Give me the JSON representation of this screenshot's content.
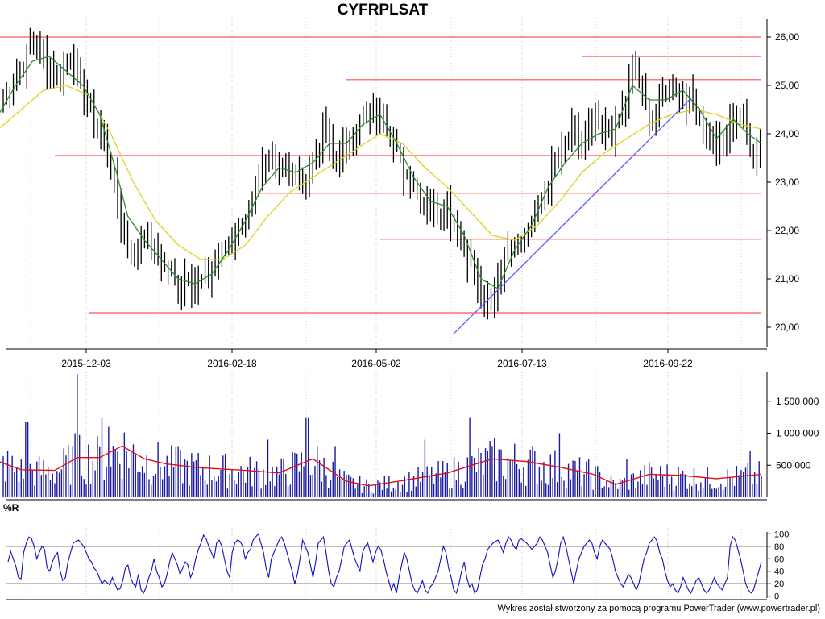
{
  "chart_data": [
    {
      "type": "candlestick",
      "panel": "price",
      "title": "CYFRPLSAT",
      "ylim": [
        19.6,
        26.3
      ],
      "y_ticks": [
        "26,00",
        "25,00",
        "24,00",
        "23,00",
        "22,00",
        "21,00",
        "20,00"
      ],
      "y_tick_values": [
        26,
        25,
        24,
        23,
        22,
        21,
        20
      ],
      "x_ticks": [
        "2015-12-03",
        "2016-02-18",
        "2016-05-02",
        "2016-07-13",
        "2016-09-22"
      ],
      "grid": true,
      "series": [
        {
          "name": "",
          "style": "ohlc-bars",
          "color": "#000000"
        },
        {
          "name": "",
          "style": "line",
          "color": "#2e8b2e"
        },
        {
          "name": "",
          "style": "line",
          "color": "#e0d020"
        }
      ],
      "close_path": [
        {
          "x": 0,
          "y": 24.5
        },
        {
          "x": 10,
          "y": 25.0
        },
        {
          "x": 20,
          "y": 25.3
        },
        {
          "x": 30,
          "y": 25.9
        },
        {
          "x": 40,
          "y": 25.6
        },
        {
          "x": 50,
          "y": 25.2
        },
        {
          "x": 58,
          "y": 25.4
        },
        {
          "x": 65,
          "y": 25.6
        },
        {
          "x": 75,
          "y": 24.9
        },
        {
          "x": 85,
          "y": 24.3
        },
        {
          "x": 95,
          "y": 23.8
        },
        {
          "x": 105,
          "y": 22.8
        },
        {
          "x": 112,
          "y": 21.8
        },
        {
          "x": 120,
          "y": 21.5
        },
        {
          "x": 130,
          "y": 21.9
        },
        {
          "x": 140,
          "y": 21.5
        },
        {
          "x": 150,
          "y": 21.2
        },
        {
          "x": 160,
          "y": 20.8
        },
        {
          "x": 168,
          "y": 21.1
        },
        {
          "x": 175,
          "y": 20.9
        },
        {
          "x": 185,
          "y": 21.0
        },
        {
          "x": 195,
          "y": 21.4
        },
        {
          "x": 205,
          "y": 21.8
        },
        {
          "x": 215,
          "y": 22.1
        },
        {
          "x": 225,
          "y": 22.5
        },
        {
          "x": 235,
          "y": 23.2
        },
        {
          "x": 245,
          "y": 23.5
        },
        {
          "x": 255,
          "y": 23.4
        },
        {
          "x": 265,
          "y": 23.1
        },
        {
          "x": 272,
          "y": 22.9
        },
        {
          "x": 280,
          "y": 23.5
        },
        {
          "x": 290,
          "y": 24.1
        },
        {
          "x": 298,
          "y": 23.4
        },
        {
          "x": 306,
          "y": 23.6
        },
        {
          "x": 315,
          "y": 24.0
        },
        {
          "x": 325,
          "y": 24.3
        },
        {
          "x": 335,
          "y": 24.5
        },
        {
          "x": 343,
          "y": 24.4
        },
        {
          "x": 350,
          "y": 23.9
        },
        {
          "x": 360,
          "y": 23.3
        },
        {
          "x": 370,
          "y": 23.0
        },
        {
          "x": 380,
          "y": 22.6
        },
        {
          "x": 390,
          "y": 22.3
        },
        {
          "x": 398,
          "y": 22.6
        },
        {
          "x": 405,
          "y": 22.2
        },
        {
          "x": 412,
          "y": 21.8
        },
        {
          "x": 420,
          "y": 21.4
        },
        {
          "x": 430,
          "y": 20.6
        },
        {
          "x": 438,
          "y": 20.4
        },
        {
          "x": 446,
          "y": 21.1
        },
        {
          "x": 455,
          "y": 21.7
        },
        {
          "x": 463,
          "y": 21.8
        },
        {
          "x": 470,
          "y": 21.9
        },
        {
          "x": 478,
          "y": 22.3
        },
        {
          "x": 486,
          "y": 22.8
        },
        {
          "x": 494,
          "y": 23.3
        },
        {
          "x": 502,
          "y": 23.5
        },
        {
          "x": 510,
          "y": 24.1
        },
        {
          "x": 520,
          "y": 23.8
        },
        {
          "x": 530,
          "y": 24.2
        },
        {
          "x": 540,
          "y": 24.0
        },
        {
          "x": 550,
          "y": 24.1
        },
        {
          "x": 558,
          "y": 24.6
        },
        {
          "x": 565,
          "y": 25.3
        },
        {
          "x": 570,
          "y": 25.2
        },
        {
          "x": 578,
          "y": 24.4
        },
        {
          "x": 586,
          "y": 24.4
        },
        {
          "x": 594,
          "y": 24.9
        },
        {
          "x": 602,
          "y": 25.0
        },
        {
          "x": 610,
          "y": 24.8
        },
        {
          "x": 618,
          "y": 24.6
        },
        {
          "x": 626,
          "y": 24.3
        },
        {
          "x": 634,
          "y": 23.9
        },
        {
          "x": 642,
          "y": 23.7
        },
        {
          "x": 650,
          "y": 24.1
        },
        {
          "x": 658,
          "y": 24.5
        },
        {
          "x": 666,
          "y": 24.1
        },
        {
          "x": 674,
          "y": 23.5
        },
        {
          "x": 680,
          "y": 23.9
        }
      ],
      "sma_fast_path": [
        {
          "x": 0,
          "y": 24.4
        },
        {
          "x": 15,
          "y": 25.0
        },
        {
          "x": 30,
          "y": 25.5
        },
        {
          "x": 45,
          "y": 25.6
        },
        {
          "x": 60,
          "y": 25.3
        },
        {
          "x": 75,
          "y": 25.0
        },
        {
          "x": 90,
          "y": 24.4
        },
        {
          "x": 105,
          "y": 23.2
        },
        {
          "x": 115,
          "y": 22.3
        },
        {
          "x": 130,
          "y": 21.8
        },
        {
          "x": 145,
          "y": 21.4
        },
        {
          "x": 160,
          "y": 21.0
        },
        {
          "x": 175,
          "y": 20.9
        },
        {
          "x": 190,
          "y": 21.1
        },
        {
          "x": 205,
          "y": 21.6
        },
        {
          "x": 220,
          "y": 22.2
        },
        {
          "x": 235,
          "y": 22.9
        },
        {
          "x": 250,
          "y": 23.3
        },
        {
          "x": 265,
          "y": 23.2
        },
        {
          "x": 280,
          "y": 23.4
        },
        {
          "x": 295,
          "y": 23.8
        },
        {
          "x": 310,
          "y": 23.8
        },
        {
          "x": 325,
          "y": 24.2
        },
        {
          "x": 340,
          "y": 24.4
        },
        {
          "x": 355,
          "y": 23.8
        },
        {
          "x": 370,
          "y": 23.1
        },
        {
          "x": 385,
          "y": 22.6
        },
        {
          "x": 400,
          "y": 22.5
        },
        {
          "x": 415,
          "y": 21.9
        },
        {
          "x": 430,
          "y": 21.0
        },
        {
          "x": 445,
          "y": 20.8
        },
        {
          "x": 460,
          "y": 21.6
        },
        {
          "x": 475,
          "y": 22.1
        },
        {
          "x": 490,
          "y": 22.9
        },
        {
          "x": 505,
          "y": 23.4
        },
        {
          "x": 520,
          "y": 23.8
        },
        {
          "x": 535,
          "y": 24.0
        },
        {
          "x": 550,
          "y": 24.1
        },
        {
          "x": 565,
          "y": 25.0
        },
        {
          "x": 580,
          "y": 24.7
        },
        {
          "x": 595,
          "y": 24.7
        },
        {
          "x": 610,
          "y": 24.9
        },
        {
          "x": 625,
          "y": 24.5
        },
        {
          "x": 640,
          "y": 23.9
        },
        {
          "x": 655,
          "y": 24.3
        },
        {
          "x": 668,
          "y": 24.0
        },
        {
          "x": 680,
          "y": 23.8
        }
      ],
      "sma_slow_path": [
        {
          "x": 0,
          "y": 24.1
        },
        {
          "x": 20,
          "y": 24.5
        },
        {
          "x": 40,
          "y": 24.9
        },
        {
          "x": 60,
          "y": 25.0
        },
        {
          "x": 80,
          "y": 24.8
        },
        {
          "x": 100,
          "y": 24.0
        },
        {
          "x": 120,
          "y": 23.0
        },
        {
          "x": 140,
          "y": 22.2
        },
        {
          "x": 160,
          "y": 21.7
        },
        {
          "x": 180,
          "y": 21.4
        },
        {
          "x": 200,
          "y": 21.4
        },
        {
          "x": 220,
          "y": 21.7
        },
        {
          "x": 240,
          "y": 22.3
        },
        {
          "x": 260,
          "y": 22.8
        },
        {
          "x": 280,
          "y": 23.1
        },
        {
          "x": 300,
          "y": 23.4
        },
        {
          "x": 320,
          "y": 23.7
        },
        {
          "x": 340,
          "y": 24.0
        },
        {
          "x": 360,
          "y": 23.8
        },
        {
          "x": 380,
          "y": 23.3
        },
        {
          "x": 400,
          "y": 22.9
        },
        {
          "x": 420,
          "y": 22.4
        },
        {
          "x": 440,
          "y": 21.9
        },
        {
          "x": 460,
          "y": 21.8
        },
        {
          "x": 480,
          "y": 22.1
        },
        {
          "x": 500,
          "y": 22.6
        },
        {
          "x": 520,
          "y": 23.2
        },
        {
          "x": 540,
          "y": 23.6
        },
        {
          "x": 560,
          "y": 23.9
        },
        {
          "x": 580,
          "y": 24.2
        },
        {
          "x": 600,
          "y": 24.4
        },
        {
          "x": 620,
          "y": 24.5
        },
        {
          "x": 640,
          "y": 24.4
        },
        {
          "x": 660,
          "y": 24.2
        },
        {
          "x": 680,
          "y": 24.1
        }
      ],
      "horizontal_lines": [
        {
          "y": 26.0,
          "from": 0,
          "to": 680
        },
        {
          "y": 25.6,
          "from": 520,
          "to": 680
        },
        {
          "y": 25.12,
          "from": 310,
          "to": 680
        },
        {
          "y": 23.55,
          "from": 50,
          "to": 680
        },
        {
          "y": 22.77,
          "from": 230,
          "to": 680
        },
        {
          "y": 21.82,
          "from": 340,
          "to": 680
        },
        {
          "y": 20.3,
          "from": 80,
          "to": 680
        }
      ],
      "trendline": {
        "x1": 405,
        "y1": 19.85,
        "x2": 618,
        "y2": 24.75
      }
    },
    {
      "type": "bar",
      "panel": "volume",
      "ylim": [
        0,
        1950000
      ],
      "y_ticks": [
        "1 500 000",
        "1 000 000",
        "500 000"
      ],
      "y_tick_values": [
        1500000,
        1000000,
        500000
      ],
      "color": "#1a1aa0",
      "average_color": "#e01010",
      "spikes": [
        {
          "x": 25,
          "v": 1170000
        },
        {
          "x": 68,
          "v": 1000000
        },
        {
          "x": 70,
          "v": 1920000
        },
        {
          "x": 92,
          "v": 1240000
        },
        {
          "x": 98,
          "v": 1100000
        },
        {
          "x": 160,
          "v": 800000
        },
        {
          "x": 240,
          "v": 900000
        },
        {
          "x": 275,
          "v": 1250000
        },
        {
          "x": 300,
          "v": 800000
        },
        {
          "x": 380,
          "v": 900000
        },
        {
          "x": 420,
          "v": 1250000
        },
        {
          "x": 440,
          "v": 800000
        },
        {
          "x": 500,
          "v": 1000000
        },
        {
          "x": 560,
          "v": 600000
        },
        {
          "x": 670,
          "v": 720000
        }
      ],
      "average_path": [
        {
          "x": 0,
          "v": 560000
        },
        {
          "x": 20,
          "v": 430000
        },
        {
          "x": 50,
          "v": 420000
        },
        {
          "x": 70,
          "v": 620000
        },
        {
          "x": 90,
          "v": 620000
        },
        {
          "x": 110,
          "v": 800000
        },
        {
          "x": 130,
          "v": 600000
        },
        {
          "x": 150,
          "v": 520000
        },
        {
          "x": 180,
          "v": 460000
        },
        {
          "x": 220,
          "v": 420000
        },
        {
          "x": 250,
          "v": 380000
        },
        {
          "x": 280,
          "v": 600000
        },
        {
          "x": 310,
          "v": 250000
        },
        {
          "x": 330,
          "v": 180000
        },
        {
          "x": 360,
          "v": 260000
        },
        {
          "x": 400,
          "v": 380000
        },
        {
          "x": 440,
          "v": 600000
        },
        {
          "x": 470,
          "v": 560000
        },
        {
          "x": 500,
          "v": 470000
        },
        {
          "x": 530,
          "v": 360000
        },
        {
          "x": 550,
          "v": 200000
        },
        {
          "x": 580,
          "v": 360000
        },
        {
          "x": 610,
          "v": 340000
        },
        {
          "x": 640,
          "v": 290000
        },
        {
          "x": 680,
          "v": 360000
        }
      ]
    },
    {
      "type": "line",
      "panel": "williams",
      "title": "%R",
      "ylim": [
        -3,
        103
      ],
      "y_ticks": [
        "100",
        "80",
        "60",
        "40",
        "20",
        "0"
      ],
      "y_tick_values": [
        100,
        80,
        60,
        40,
        20,
        0
      ],
      "reference_lines": [
        80,
        20
      ],
      "color": "#1010c0",
      "values": [
        55,
        72,
        60,
        48,
        30,
        28,
        70,
        85,
        95,
        92,
        80,
        60,
        70,
        80,
        75,
        45,
        40,
        55,
        65,
        70,
        40,
        25,
        30,
        55,
        70,
        85,
        88,
        90,
        85,
        80,
        70,
        60,
        55,
        45,
        40,
        30,
        20,
        25,
        22,
        18,
        30,
        20,
        10,
        12,
        25,
        45,
        50,
        30,
        20,
        15,
        35,
        10,
        5,
        15,
        30,
        40,
        60,
        40,
        30,
        15,
        20,
        35,
        55,
        70,
        60,
        50,
        35,
        45,
        55,
        50,
        30,
        40,
        60,
        75,
        85,
        98,
        92,
        80,
        70,
        60,
        85,
        90,
        80,
        60,
        40,
        30,
        70,
        85,
        90,
        88,
        80,
        60,
        70,
        75,
        90,
        95,
        100,
        85,
        70,
        45,
        30,
        60,
        70,
        80,
        90,
        95,
        85,
        70,
        55,
        40,
        20,
        35,
        60,
        90,
        80,
        70,
        50,
        30,
        55,
        85,
        90,
        95,
        70,
        40,
        20,
        15,
        30,
        40,
        60,
        80,
        85,
        90,
        75,
        60,
        50,
        40,
        70,
        80,
        85,
        70,
        55,
        70,
        80,
        75,
        60,
        40,
        25,
        10,
        20,
        5,
        30,
        50,
        70,
        60,
        40,
        20,
        10,
        5,
        15,
        25,
        10,
        5,
        15,
        20,
        30,
        40,
        60,
        80,
        70,
        45,
        30,
        10,
        5,
        20,
        40,
        55,
        30,
        15,
        20,
        5,
        10,
        30,
        50,
        60,
        75,
        80,
        85,
        88,
        90,
        80,
        70,
        85,
        95,
        90,
        80,
        75,
        90,
        92,
        88,
        85,
        80,
        75,
        80,
        85,
        95,
        90,
        80,
        70,
        50,
        30,
        40,
        60,
        85,
        95,
        80,
        60,
        40,
        20,
        40,
        60,
        70,
        80,
        85,
        90,
        85,
        70,
        60,
        80,
        90,
        85,
        80,
        75,
        60,
        40,
        30,
        20,
        15,
        25,
        35,
        30,
        20,
        10,
        20,
        40,
        60,
        70,
        85,
        90,
        95,
        88,
        70,
        60,
        40,
        25,
        15,
        20,
        10,
        5,
        15,
        30,
        20,
        10,
        5,
        15,
        25,
        30,
        20,
        10,
        5,
        10,
        20,
        30,
        20,
        15,
        10,
        20,
        30,
        80,
        95,
        90,
        75,
        60,
        40,
        20,
        10,
        5,
        10,
        25,
        40,
        55
      ]
    }
  ],
  "footer": "Wykres został stworzony za pomocą programu PowerTrader (www.powertrader.pl)"
}
